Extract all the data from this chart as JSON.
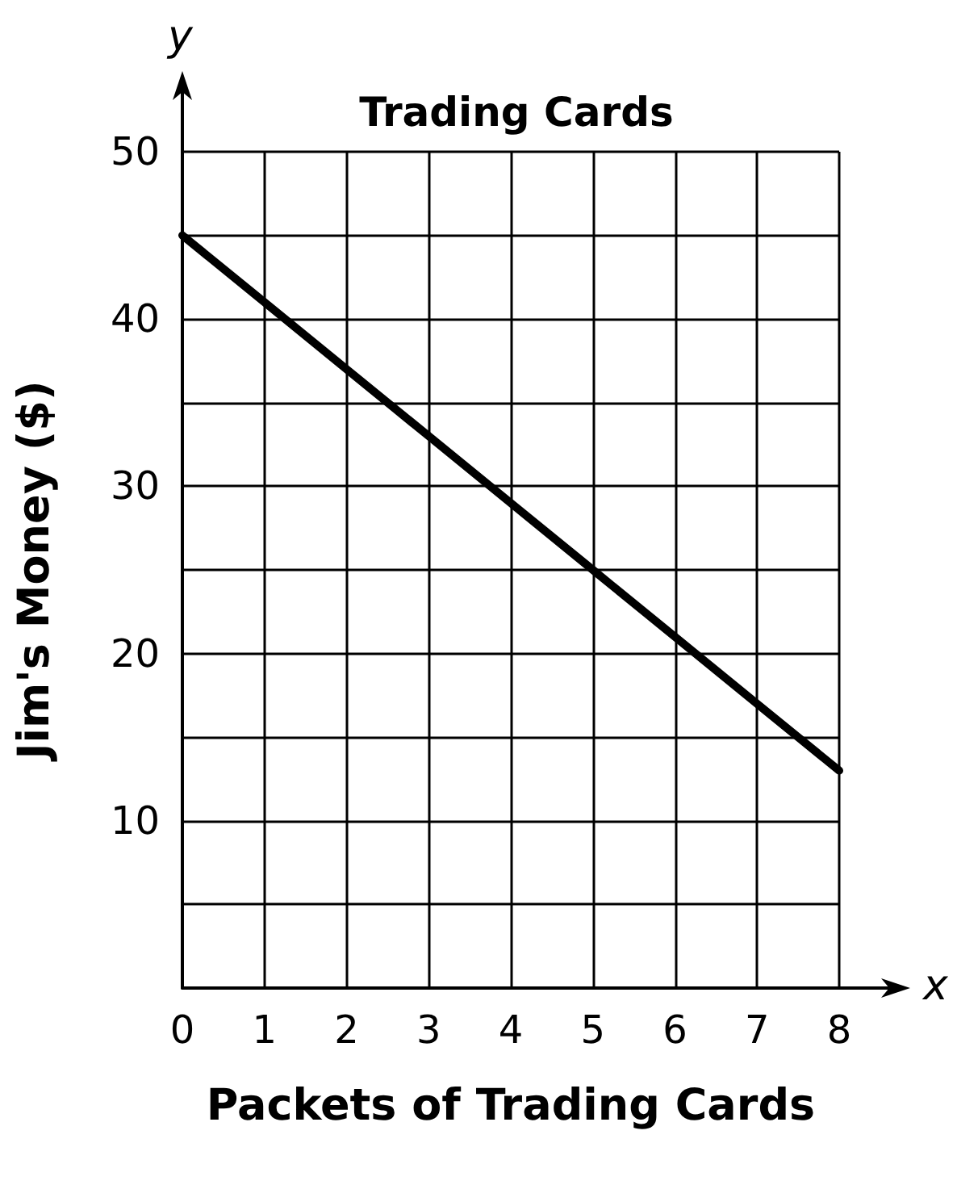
{
  "chart_data": {
    "type": "line",
    "title": "Trading Cards",
    "xlabel": "Packets of Trading Cards",
    "ylabel": "Jim's Money ($)",
    "annotations": [
      "y",
      "x"
    ],
    "x": [
      0,
      1,
      2,
      3,
      4,
      5,
      6,
      7,
      8
    ],
    "series": [
      {
        "color": "#000000",
        "values": [
          45,
          41,
          37,
          33,
          29,
          25,
          21,
          17,
          13
        ]
      }
    ],
    "xlim": [
      0,
      8
    ],
    "xticks": [
      0,
      1,
      2,
      3,
      4,
      5,
      6,
      7,
      8
    ],
    "ylim": [
      0,
      50
    ],
    "yticks": [
      {
        "value": 5,
        "label": null
      },
      10,
      {
        "value": 15,
        "label": null
      },
      20,
      {
        "value": 25,
        "label": null
      },
      30,
      {
        "value": 35,
        "label": null
      },
      40,
      {
        "value": 45,
        "label": null
      },
      50
    ],
    "grid": true,
    "marker": "none",
    "line_style": "solid"
  }
}
